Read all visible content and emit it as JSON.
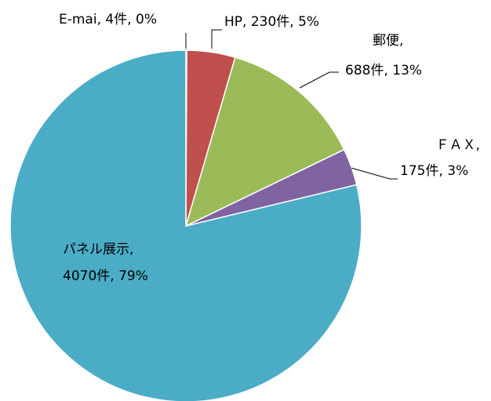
{
  "chart_data": {
    "type": "pie",
    "values": [
      4,
      230,
      688,
      175,
      4070
    ],
    "value_labels": [
      [
        "E-mai, 4件, 0%"
      ],
      [
        "HP, 230件, 5%"
      ],
      [
        "郵便,",
        "688件, 13%"
      ],
      [
        "ＦＡＸ,",
        "175件, 3%"
      ],
      [
        "パネル展示,",
        "4070件, 79%"
      ]
    ],
    "colors": [
      "#4f81bd",
      "#c0504d",
      "#9bbb59",
      "#8064a2",
      "#4bacc6"
    ]
  }
}
